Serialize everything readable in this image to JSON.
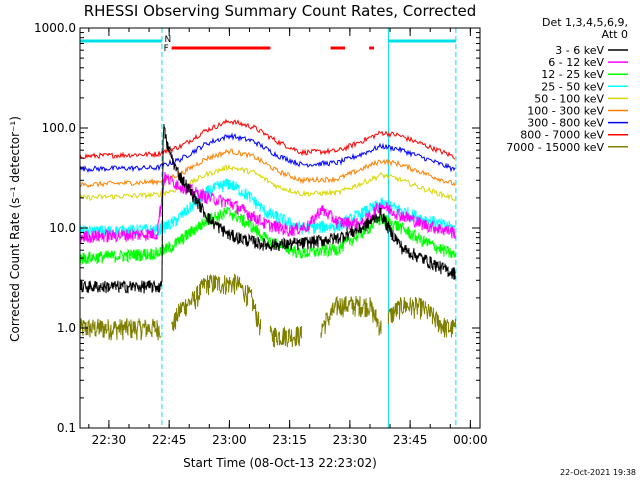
{
  "chart_data": {
    "type": "line",
    "title": "RHESSI Observing Summary Count Rates, Corrected",
    "xlabel": "Start Time (08-Oct-13 22:23:02)",
    "ylabel": "Corrected Count Rate (s⁻¹ detector⁻¹)",
    "yscale": "log",
    "ylim": [
      0.1,
      1000.0
    ],
    "xlim": [
      22.38,
      24.04
    ],
    "x_ticks": [
      {
        "value": 22.5,
        "label": "22:30"
      },
      {
        "value": 22.75,
        "label": "22:45"
      },
      {
        "value": 23.0,
        "label": "23:00"
      },
      {
        "value": 23.25,
        "label": "23:15"
      },
      {
        "value": 23.5,
        "label": "23:30"
      },
      {
        "value": 23.75,
        "label": "23:45"
      },
      {
        "value": 24.0,
        "label": "00:00"
      }
    ],
    "y_ticks": [
      {
        "value": 0.1,
        "label": "0.1"
      },
      {
        "value": 1.0,
        "label": "1.0"
      },
      {
        "value": 10.0,
        "label": "10.0"
      },
      {
        "value": 100.0,
        "label": "100.0"
      },
      {
        "value": 1000.0,
        "label": "1000.0"
      }
    ],
    "legend_header": [
      "Det 1,3,4,5,6,9,",
      "Att 0"
    ],
    "legend_position": "right",
    "night_day_markers": {
      "vertical_line_times": [
        22.38,
        22.72,
        23.66,
        23.94
      ],
      "n_label": "N",
      "f_label": "F",
      "n_bars": [
        [
          22.38,
          22.72
        ],
        [
          23.66,
          23.94
        ]
      ],
      "f_bars": [
        [
          22.76,
          23.17
        ],
        [
          23.42,
          23.48
        ],
        [
          23.58,
          23.6
        ]
      ]
    },
    "series": [
      {
        "name": "3 - 6 keV",
        "color": "#000000",
        "x": [
          22.38,
          22.72,
          22.725,
          22.74,
          22.78,
          22.85,
          22.92,
          23.0,
          23.08,
          23.16,
          23.3,
          23.45,
          23.55,
          23.63,
          23.66,
          23.72,
          23.8,
          23.88,
          23.94
        ],
        "y": [
          2.6,
          2.6,
          110.0,
          70.0,
          38.0,
          21.0,
          12.0,
          8.5,
          7.5,
          6.8,
          7.0,
          8.0,
          10.0,
          14.0,
          10.0,
          6.2,
          5.0,
          4.0,
          3.5
        ]
      },
      {
        "name": "6 - 12 keV",
        "color": "#ff00ff",
        "x": [
          22.38,
          22.7,
          22.73,
          22.78,
          22.85,
          22.92,
          23.0,
          23.08,
          23.15,
          23.25,
          23.33,
          23.38,
          23.45,
          23.55,
          23.63,
          23.7,
          23.8,
          23.94
        ],
        "y": [
          8.2,
          8.8,
          32.0,
          28.0,
          23.0,
          20.0,
          18.0,
          14.0,
          11.0,
          9.5,
          10.5,
          15.5,
          11.5,
          11.0,
          17.0,
          14.0,
          11.0,
          9.0
        ]
      },
      {
        "name": "12 - 25 keV",
        "color": "#00ff00",
        "x": [
          22.38,
          22.7,
          22.76,
          22.85,
          22.92,
          23.0,
          23.08,
          23.16,
          23.3,
          23.45,
          23.55,
          23.63,
          23.7,
          23.8,
          23.94
        ],
        "y": [
          5.0,
          5.6,
          6.5,
          9.5,
          12.5,
          14.5,
          11.0,
          7.5,
          5.6,
          6.2,
          9.0,
          12.5,
          10.5,
          7.5,
          5.3
        ]
      },
      {
        "name": "25 - 50 keV",
        "color": "#00ffff",
        "x": [
          22.38,
          22.7,
          22.76,
          22.85,
          22.92,
          23.0,
          23.08,
          23.16,
          23.3,
          23.45,
          23.55,
          23.63,
          23.7,
          23.8,
          23.94
        ],
        "y": [
          9.2,
          9.6,
          11.0,
          17.0,
          24.0,
          28.0,
          21.0,
          14.0,
          10.0,
          10.5,
          14.0,
          17.5,
          15.5,
          12.5,
          9.8
        ]
      },
      {
        "name": "50 - 100 keV",
        "color": "#d8d800",
        "x": [
          22.38,
          22.7,
          22.8,
          22.9,
          23.0,
          23.1,
          23.2,
          23.3,
          23.45,
          23.55,
          23.63,
          23.7,
          23.8,
          23.94
        ],
        "y": [
          20.0,
          21.5,
          25.0,
          34.0,
          41.0,
          36.0,
          26.0,
          22.0,
          22.5,
          28.0,
          34.0,
          31.0,
          25.0,
          19.5
        ]
      },
      {
        "name": "100 - 300 keV",
        "color": "#ff8000",
        "x": [
          22.38,
          22.7,
          22.8,
          22.9,
          23.0,
          23.1,
          23.2,
          23.3,
          23.45,
          23.55,
          23.63,
          23.7,
          23.8,
          23.94
        ],
        "y": [
          27.0,
          29.0,
          35.0,
          49.0,
          59.0,
          52.0,
          37.0,
          30.0,
          31.0,
          39.0,
          47.0,
          44.0,
          36.0,
          27.0
        ]
      },
      {
        "name": "300 - 800 keV",
        "color": "#0000ff",
        "x": [
          22.38,
          22.7,
          22.8,
          22.9,
          23.0,
          23.1,
          23.2,
          23.3,
          23.45,
          23.55,
          23.63,
          23.7,
          23.8,
          23.94
        ],
        "y": [
          39.0,
          40.0,
          49.0,
          69.0,
          84.0,
          74.0,
          53.0,
          43.0,
          45.0,
          55.0,
          66.0,
          62.0,
          51.0,
          38.0
        ]
      },
      {
        "name": "800 - 7000 keV",
        "color": "#ff0000",
        "x": [
          22.38,
          22.7,
          22.8,
          22.9,
          23.0,
          23.1,
          23.2,
          23.3,
          23.45,
          23.55,
          23.63,
          23.7,
          23.8,
          23.94
        ],
        "y": [
          52.0,
          55.0,
          66.0,
          94.0,
          118.0,
          102.0,
          73.0,
          57.0,
          59.0,
          74.0,
          90.0,
          85.0,
          69.0,
          51.0
        ]
      },
      {
        "name": "7000 - 15000 keV",
        "color": "#808000",
        "segments": [
          {
            "x": [
              22.38,
              22.72
            ],
            "y": [
              1.0,
              1.0
            ]
          },
          {
            "x": [
              22.76,
              22.8,
              22.86,
              22.9,
              22.97,
              23.03,
              23.09,
              23.13
            ],
            "y": [
              1.0,
              1.6,
              2.0,
              2.8,
              2.8,
              2.8,
              2.0,
              1.0
            ]
          },
          {
            "x": [
              23.17,
              23.3
            ],
            "y": [
              0.85,
              0.85
            ]
          },
          {
            "x": [
              23.38,
              23.45,
              23.52,
              23.58,
              23.63
            ],
            "y": [
              1.0,
              1.7,
              1.7,
              1.7,
              1.0
            ]
          },
          {
            "x": [
              23.66,
              23.72,
              23.8,
              23.9,
              23.94
            ],
            "y": [
              1.3,
              1.7,
              1.6,
              1.0,
              1.0
            ]
          }
        ]
      }
    ]
  },
  "footer": {
    "timestamp": "22-Oct-2021 19:38"
  }
}
